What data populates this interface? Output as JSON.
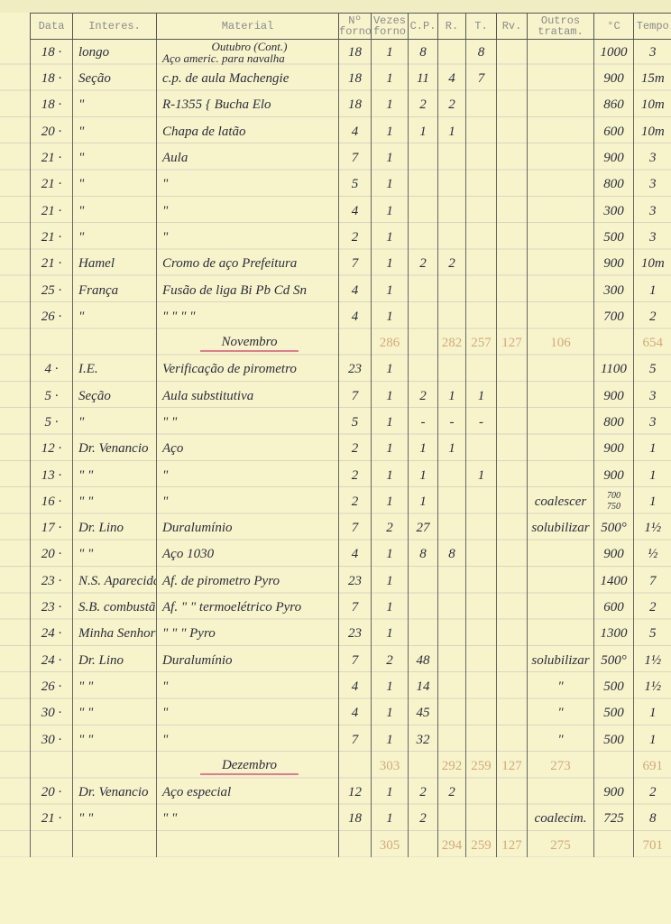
{
  "headers": [
    "Data",
    "Interes.",
    "Material",
    "Nº forno",
    "Vezes forno",
    "C.P.",
    "R.",
    "T.",
    "Rv.",
    "Outros tratam.",
    "°C",
    "Tempo"
  ],
  "section_october": "Outubro (Cont.)",
  "rows": [
    {
      "cells": [
        "18 ·",
        "longo",
        "Aço americ. para navalha",
        "18",
        "1",
        "8",
        "",
        "8",
        "",
        "",
        "1000",
        "3"
      ]
    },
    {
      "cells": [
        "18 ·",
        "Seção",
        "c.p. de aula Machengie",
        "18",
        "1",
        "11",
        "4",
        "7",
        "",
        "",
        "900",
        "15m"
      ]
    },
    {
      "cells": [
        "18 ·",
        "\"",
        "R-1355 { Bucha Elo",
        "18",
        "1",
        "2",
        "2",
        "",
        "",
        "",
        "860",
        "10m"
      ]
    },
    {
      "cells": [
        "20 ·",
        "\"",
        "Chapa de latão",
        "4",
        "1",
        "1",
        "1",
        "",
        "",
        "",
        "600",
        "10m"
      ]
    },
    {
      "cells": [
        "21 ·",
        "\"",
        "Aula",
        "7",
        "1",
        "",
        "",
        "",
        "",
        "",
        "900",
        "3"
      ]
    },
    {
      "cells": [
        "21 ·",
        "\"",
        "\"",
        "5",
        "1",
        "",
        "",
        "",
        "",
        "",
        "800",
        "3"
      ]
    },
    {
      "cells": [
        "21 ·",
        "\"",
        "\"",
        "4",
        "1",
        "",
        "",
        "",
        "",
        "",
        "300",
        "3"
      ]
    },
    {
      "cells": [
        "21 ·",
        "\"",
        "\"",
        "2",
        "1",
        "",
        "",
        "",
        "",
        "",
        "500",
        "3"
      ]
    },
    {
      "cells": [
        "21 ·",
        "Hamel",
        "Cromo de aço Prefeitura",
        "7",
        "1",
        "2",
        "2",
        "",
        "",
        "",
        "900",
        "10m"
      ]
    },
    {
      "cells": [
        "25 ·",
        "França",
        "Fusão de liga Bi Pb Cd Sn",
        "4",
        "1",
        "",
        "",
        "",
        "",
        "",
        "300",
        "1"
      ]
    },
    {
      "cells": [
        "26 ·",
        "\"",
        "\"  \"  \"  \"",
        "4",
        "1",
        "",
        "",
        "",
        "",
        "",
        "700",
        "2"
      ]
    },
    {
      "total": true,
      "section": "Novembro",
      "cells": [
        "",
        "",
        "",
        "",
        "286",
        "",
        "282",
        "257",
        "127",
        "106",
        "",
        "654"
      ]
    },
    {
      "cells": [
        "4 ·",
        "I.E.",
        "Verificação de pirometro",
        "23",
        "1",
        "",
        "",
        "",
        "",
        "",
        "1100",
        "5"
      ]
    },
    {
      "cells": [
        "5 ·",
        "Seção",
        "Aula substitutiva",
        "7",
        "1",
        "2",
        "1",
        "1",
        "",
        "",
        "900",
        "3"
      ]
    },
    {
      "cells": [
        "5 ·",
        "\"",
        "\"   \"",
        "5",
        "1",
        "-",
        "-",
        "-",
        "",
        "",
        "800",
        "3"
      ]
    },
    {
      "cells": [
        "12 ·",
        "Dr. Venancio",
        "Aço",
        "2",
        "1",
        "1",
        "1",
        "",
        "",
        "",
        "900",
        "1"
      ]
    },
    {
      "cells": [
        "13 ·",
        "\"  \"",
        "\"",
        "2",
        "1",
        "1",
        "",
        "1",
        "",
        "",
        "900",
        "1"
      ]
    },
    {
      "cells": [
        "16 ·",
        "\"  \"",
        "\"",
        "2",
        "1",
        "1",
        "",
        "",
        "",
        "coalescer",
        "700 750",
        "1"
      ]
    },
    {
      "cells": [
        "17 ·",
        "Dr. Lino",
        "Duralumínio",
        "7",
        "2",
        "27",
        "",
        "",
        "",
        "solubilizar",
        "500°",
        "1½"
      ]
    },
    {
      "cells": [
        "20 ·",
        "\"  \"",
        "Aço 1030",
        "4",
        "1",
        "8",
        "8",
        "",
        "",
        "",
        "900",
        "½"
      ]
    },
    {
      "cells": [
        "23 ·",
        "N.S. Aparecida",
        "Af. de pirometro Pyro",
        "23",
        "1",
        "",
        "",
        "",
        "",
        "",
        "1400",
        "7"
      ]
    },
    {
      "cells": [
        "23 ·",
        "S.B. combustão",
        "Af. \" \" termoelétrico Pyro",
        "7",
        "1",
        "",
        "",
        "",
        "",
        "",
        "600",
        "2"
      ]
    },
    {
      "cells": [
        "24 ·",
        "Minha Senhora",
        "\" \" \" Pyro",
        "23",
        "1",
        "",
        "",
        "",
        "",
        "",
        "1300",
        "5"
      ]
    },
    {
      "cells": [
        "24 ·",
        "Dr. Lino",
        "Duralumínio",
        "7",
        "2",
        "48",
        "",
        "",
        "",
        "solubilizar",
        "500°",
        "1½"
      ]
    },
    {
      "cells": [
        "26 ·",
        "\"  \"",
        "\"",
        "4",
        "1",
        "14",
        "",
        "",
        "",
        "\"",
        "500",
        "1½"
      ]
    },
    {
      "cells": [
        "30 ·",
        "\"  \"",
        "\"",
        "4",
        "1",
        "45",
        "",
        "",
        "",
        "\"",
        "500",
        "1"
      ]
    },
    {
      "cells": [
        "30 ·",
        "\"  \"",
        "\"",
        "7",
        "1",
        "32",
        "",
        "",
        "",
        "\"",
        "500",
        "1"
      ]
    },
    {
      "total": true,
      "section": "Dezembro",
      "cells": [
        "",
        "",
        "",
        "",
        "303",
        "",
        "292",
        "259",
        "127",
        "273",
        "",
        "691"
      ]
    },
    {
      "cells": [
        "20 ·",
        "Dr. Venancio",
        "Aço especial",
        "12",
        "1",
        "2",
        "2",
        "",
        "",
        "",
        "900",
        "2"
      ]
    },
    {
      "cells": [
        "21 ·",
        "\"  \"",
        "\"   \"",
        "18",
        "1",
        "2",
        "",
        "",
        "",
        "coalecim.",
        "725",
        "8"
      ]
    },
    {
      "total": true,
      "cells": [
        "",
        "",
        "",
        "",
        "305",
        "",
        "294",
        "259",
        "127",
        "275",
        "",
        "701"
      ]
    }
  ],
  "colors": {
    "paper": "#f7f4cc",
    "ink": "#2c2c3a",
    "pencil_totals": "#d3a87a",
    "red_underline": "#e47a8e"
  }
}
